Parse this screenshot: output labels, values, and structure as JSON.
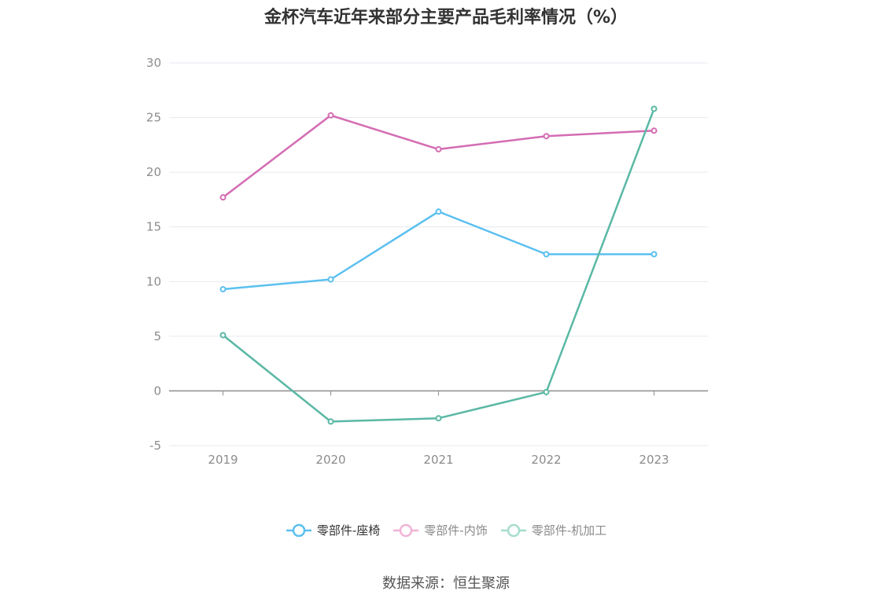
{
  "title": "金杯汽车近年来部分主要产品毛利率情况（%）",
  "source": "数据来源：恒生聚源",
  "chart_data": {
    "type": "line",
    "categories": [
      "2019",
      "2020",
      "2021",
      "2022",
      "2023"
    ],
    "ylim": [
      -5,
      30
    ],
    "yticks": [
      30,
      25,
      20,
      15,
      10,
      5,
      0,
      -5
    ],
    "series": [
      {
        "name": "零部件-座椅",
        "color": "#5bc0f0",
        "values": [
          9.3,
          10.2,
          16.4,
          12.5,
          12.5
        ]
      },
      {
        "name": "零部件-内饰",
        "color": "#d46cb3",
        "values": [
          17.7,
          25.2,
          22.1,
          23.3,
          23.8
        ]
      },
      {
        "name": "零部件-机加工",
        "color": "#5ab8a4",
        "values": [
          5.1,
          -2.8,
          -2.5,
          -0.1,
          25.8
        ]
      }
    ],
    "legend": "bottom-center",
    "grid": true
  }
}
